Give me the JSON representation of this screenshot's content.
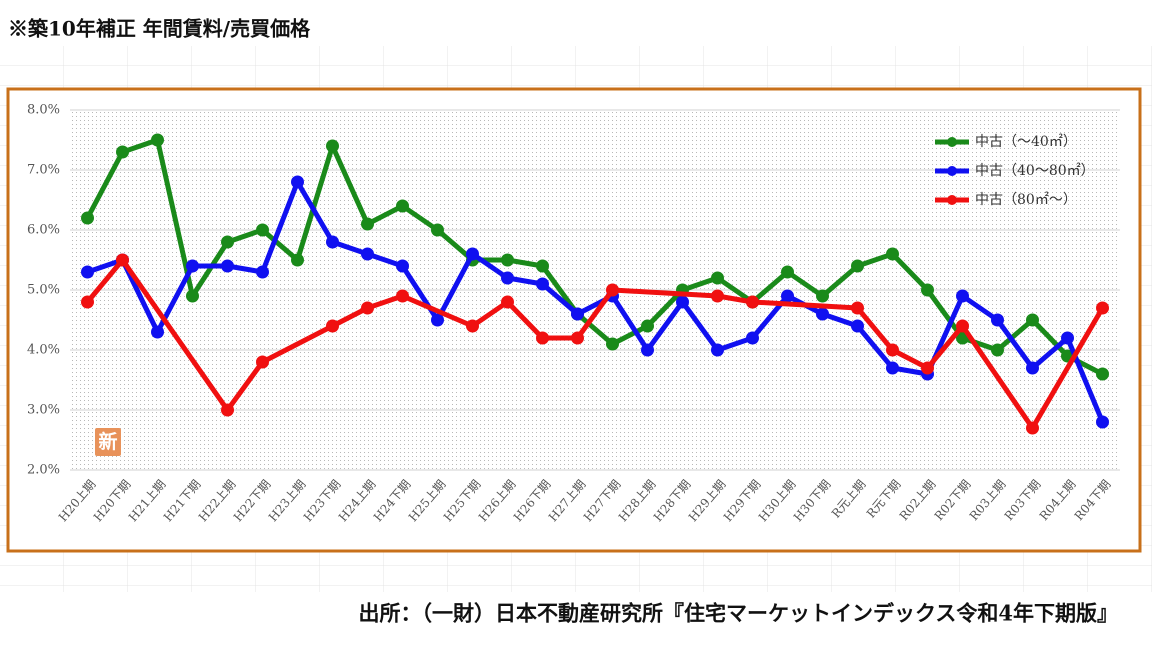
{
  "sheet": {
    "title": "※築10年補正 年間賃料/売買価格",
    "source": "出所：（一財）日本不動産研究所『住宅マーケットインデックス令和4年下期版』",
    "badge": "新"
  },
  "chart_data": {
    "type": "line",
    "categories": [
      "H20上期",
      "H20下期",
      "H21上期",
      "H21下期",
      "H22上期",
      "H22下期",
      "H23上期",
      "H23下期",
      "H24上期",
      "H24下期",
      "H25上期",
      "H25下期",
      "H26上期",
      "H26下期",
      "H27上期",
      "H27下期",
      "H28上期",
      "H28下期",
      "H29上期",
      "H29下期",
      "H30上期",
      "H30下期",
      "R元上期",
      "R元下期",
      "R02上期",
      "R02下期",
      "R03上期",
      "R03下期",
      "R04上期",
      "R04下期"
    ],
    "series": [
      {
        "name": "中古（～40㎡）",
        "color": "#1a8a1a",
        "values": [
          6.2,
          7.3,
          7.5,
          4.9,
          5.8,
          6.0,
          5.5,
          7.4,
          6.1,
          6.4,
          6.0,
          5.5,
          5.5,
          5.4,
          4.6,
          4.1,
          4.4,
          5.0,
          5.2,
          4.8,
          5.3,
          4.9,
          5.4,
          5.6,
          5.0,
          4.2,
          4.0,
          4.5,
          3.9,
          3.6
        ]
      },
      {
        "name": "中古（40～80㎡）",
        "color": "#1010f0",
        "values": [
          5.3,
          5.5,
          4.3,
          5.4,
          5.4,
          5.3,
          6.8,
          5.8,
          5.6,
          5.4,
          4.5,
          5.6,
          5.2,
          5.1,
          4.6,
          4.9,
          4.0,
          4.8,
          4.0,
          4.2,
          4.9,
          4.6,
          4.4,
          3.7,
          3.6,
          4.9,
          4.5,
          3.7,
          4.2,
          2.8
        ]
      },
      {
        "name": "中古（80㎡～）",
        "color": "#f01010",
        "values": [
          4.8,
          5.5,
          null,
          null,
          3.0,
          3.8,
          null,
          4.4,
          4.7,
          4.9,
          null,
          4.4,
          4.8,
          4.2,
          4.2,
          5.0,
          null,
          null,
          4.9,
          4.8,
          null,
          null,
          4.7,
          4.0,
          3.7,
          4.4,
          null,
          2.7,
          null,
          4.7
        ]
      }
    ],
    "ylim": [
      2,
      8
    ],
    "yticks": [
      {
        "value": 2,
        "label": "2.0%"
      },
      {
        "value": 3,
        "label": "3.0%"
      },
      {
        "value": 4,
        "label": "4.0%"
      },
      {
        "value": 5,
        "label": "5.0%"
      },
      {
        "value": 6,
        "label": "6.0%"
      },
      {
        "value": 7,
        "label": "7.0%"
      },
      {
        "value": 8,
        "label": "8.0%"
      }
    ],
    "grid": true,
    "legend": "top-right"
  }
}
